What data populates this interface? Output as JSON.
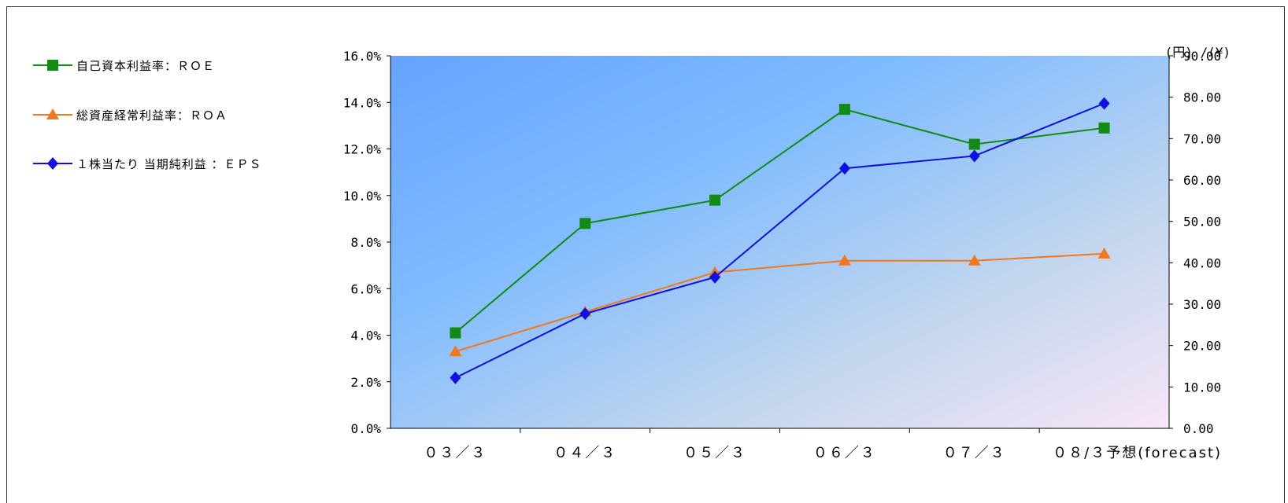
{
  "chart_data": {
    "type": "line",
    "title": "",
    "categories": [
      "０３／３",
      "０４／３",
      "０５／３",
      "０６／３",
      "０７／３",
      "０８/３予想(forecast)"
    ],
    "y_left": {
      "label": "",
      "range": [
        0,
        16
      ],
      "ticks": [
        "0.0%",
        "2.0%",
        "4.0%",
        "6.0%",
        "8.0%",
        "10.0%",
        "12.0%",
        "14.0%",
        "16.0%"
      ]
    },
    "y_right": {
      "unit_label": "(円) /(¥)",
      "range": [
        0,
        90
      ],
      "ticks": [
        "0.00",
        "10.00",
        "20.00",
        "30.00",
        "40.00",
        "50.00",
        "60.00",
        "70.00",
        "80.00",
        "90.00"
      ]
    },
    "series": [
      {
        "name": "自己資本利益率：ＲＯＥ",
        "axis": "left",
        "color": "#138a13",
        "marker": "square",
        "values": [
          4.1,
          8.8,
          9.8,
          13.7,
          12.2,
          12.9
        ]
      },
      {
        "name": "総資産経常利益率：ＲＯＡ",
        "axis": "left",
        "color": "#f2781f",
        "marker": "triangle",
        "values": [
          3.3,
          5.0,
          6.7,
          7.2,
          7.2,
          7.5
        ]
      },
      {
        "name": "１株当たり 当期純利益 ：ＥＰＳ",
        "axis": "right",
        "color": "#1010e6",
        "marker": "diamond",
        "values": [
          12.2,
          27.7,
          36.5,
          62.8,
          65.8,
          78.5
        ]
      }
    ],
    "legend_position": "left",
    "grid": false,
    "plot_background": "gradient blue to pale pink"
  }
}
